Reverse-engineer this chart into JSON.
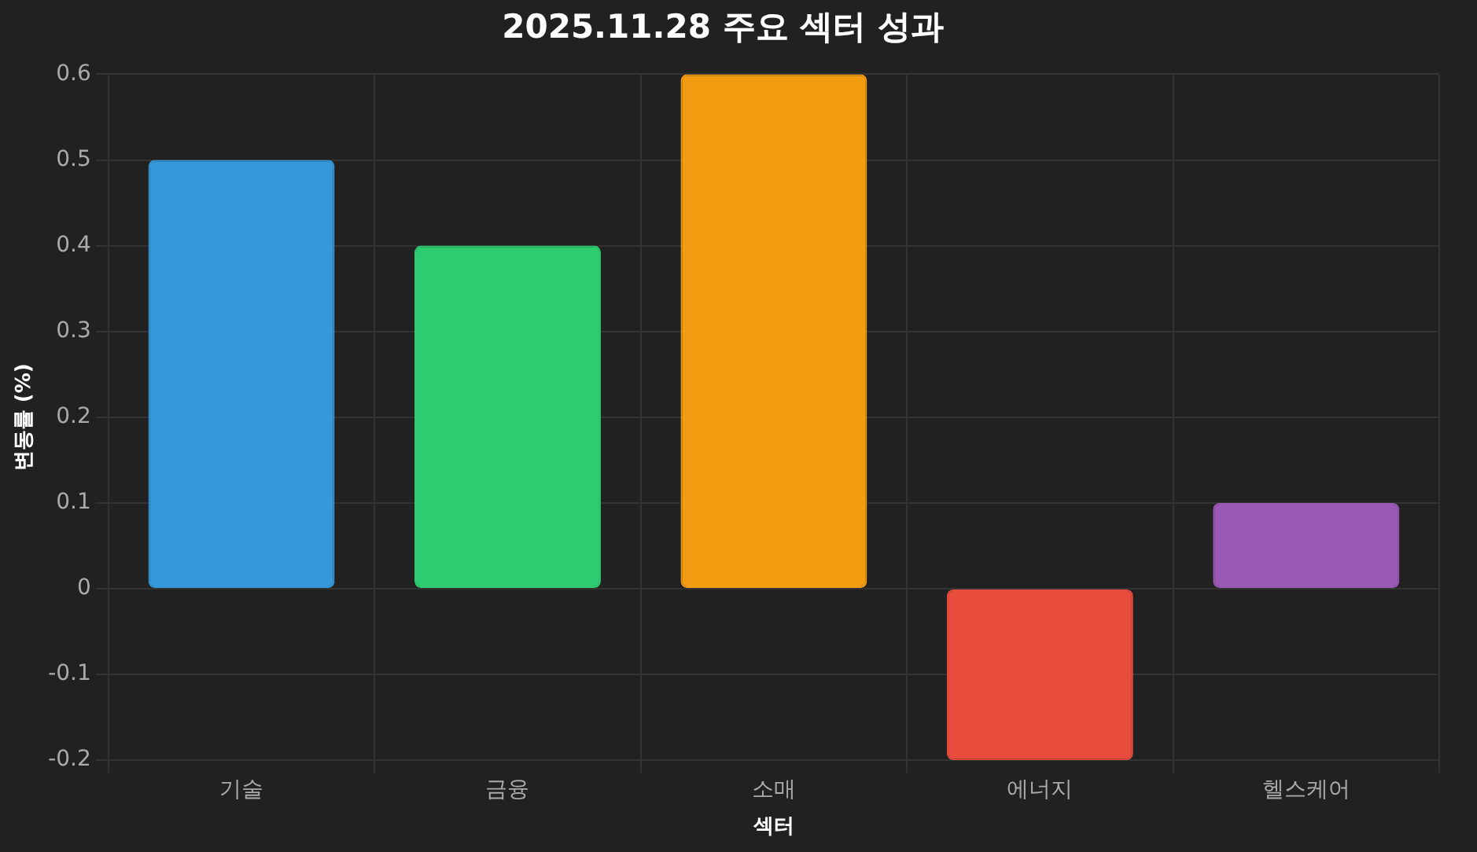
{
  "chart_data": {
    "type": "bar",
    "title": "2025.11.28 주요 섹터 성과",
    "xlabel": "섹터",
    "ylabel": "변동률 (%)",
    "categories": [
      "기술",
      "금융",
      "소매",
      "에너지",
      "헬스케어"
    ],
    "values": [
      0.5,
      0.4,
      0.6,
      -0.2,
      0.1
    ],
    "colors": [
      "#3498db",
      "#2ecc71",
      "#f39c12",
      "#e74c3c",
      "#9b59b6"
    ],
    "ylim": [
      -0.2,
      0.6
    ],
    "yticks": [
      -0.2,
      -0.1,
      0,
      0.1,
      0.2,
      0.3,
      0.4,
      0.5,
      0.6
    ],
    "grid": true,
    "legend": false
  }
}
